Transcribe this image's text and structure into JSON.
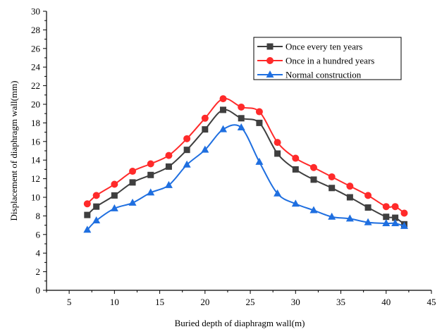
{
  "chart_data": {
    "type": "line",
    "title": "",
    "xlabel": "Buried depth of diaphragm wall(m)",
    "ylabel": "Displacement of diaphragm wall(mm)",
    "xlim": [
      2.5,
      45
    ],
    "ylim": [
      0,
      30
    ],
    "x_ticks": [
      5,
      10,
      15,
      20,
      25,
      30,
      35,
      40,
      45
    ],
    "x_tick_labels": [
      "5",
      "10",
      "15",
      "20",
      "25",
      "30",
      "35",
      "40",
      "45"
    ],
    "y_ticks": [
      0,
      2,
      4,
      6,
      8,
      10,
      12,
      14,
      16,
      18,
      20,
      22,
      24,
      26,
      28,
      30
    ],
    "y_tick_labels": [
      "0",
      "2",
      "4",
      "6",
      "8",
      "10",
      "12",
      "14",
      "16",
      "18",
      "20",
      "22",
      "24",
      "26",
      "28",
      "30"
    ],
    "grid": false,
    "legend_position": "top-right",
    "series": [
      {
        "name": "Once every ten years",
        "color": "#3f3f3f",
        "marker": "square",
        "x": [
          7,
          8,
          10,
          12,
          14,
          16,
          18,
          20,
          22,
          24,
          26,
          28,
          30,
          32,
          34,
          36,
          38,
          40,
          41,
          42
        ],
        "y": [
          8.1,
          9.0,
          10.2,
          11.6,
          12.4,
          13.3,
          15.1,
          17.3,
          19.4,
          18.5,
          18.0,
          14.7,
          13.0,
          11.9,
          11.0,
          10.0,
          8.9,
          7.9,
          7.8,
          7.1
        ]
      },
      {
        "name": "Once in a hundred years",
        "color": "#ff2a2a",
        "marker": "circle",
        "x": [
          7,
          8,
          10,
          12,
          14,
          16,
          18,
          20,
          22,
          24,
          26,
          28,
          30,
          32,
          34,
          36,
          38,
          40,
          41,
          42
        ],
        "y": [
          9.3,
          10.2,
          11.4,
          12.8,
          13.6,
          14.5,
          16.3,
          18.5,
          20.6,
          19.7,
          19.2,
          15.9,
          14.2,
          13.2,
          12.2,
          11.2,
          10.2,
          9.0,
          9.0,
          8.3
        ]
      },
      {
        "name": "Normal construction",
        "color": "#1f6fe0",
        "marker": "triangle",
        "x": [
          7,
          8,
          10,
          12,
          14,
          16,
          18,
          20,
          22,
          24,
          26,
          28,
          30,
          32,
          34,
          36,
          38,
          40,
          41,
          42
        ],
        "y": [
          6.5,
          7.5,
          8.8,
          9.4,
          10.5,
          11.3,
          13.5,
          15.1,
          17.3,
          17.5,
          13.8,
          10.4,
          9.3,
          8.6,
          7.9,
          7.7,
          7.3,
          7.2,
          7.2,
          6.9
        ]
      }
    ]
  }
}
